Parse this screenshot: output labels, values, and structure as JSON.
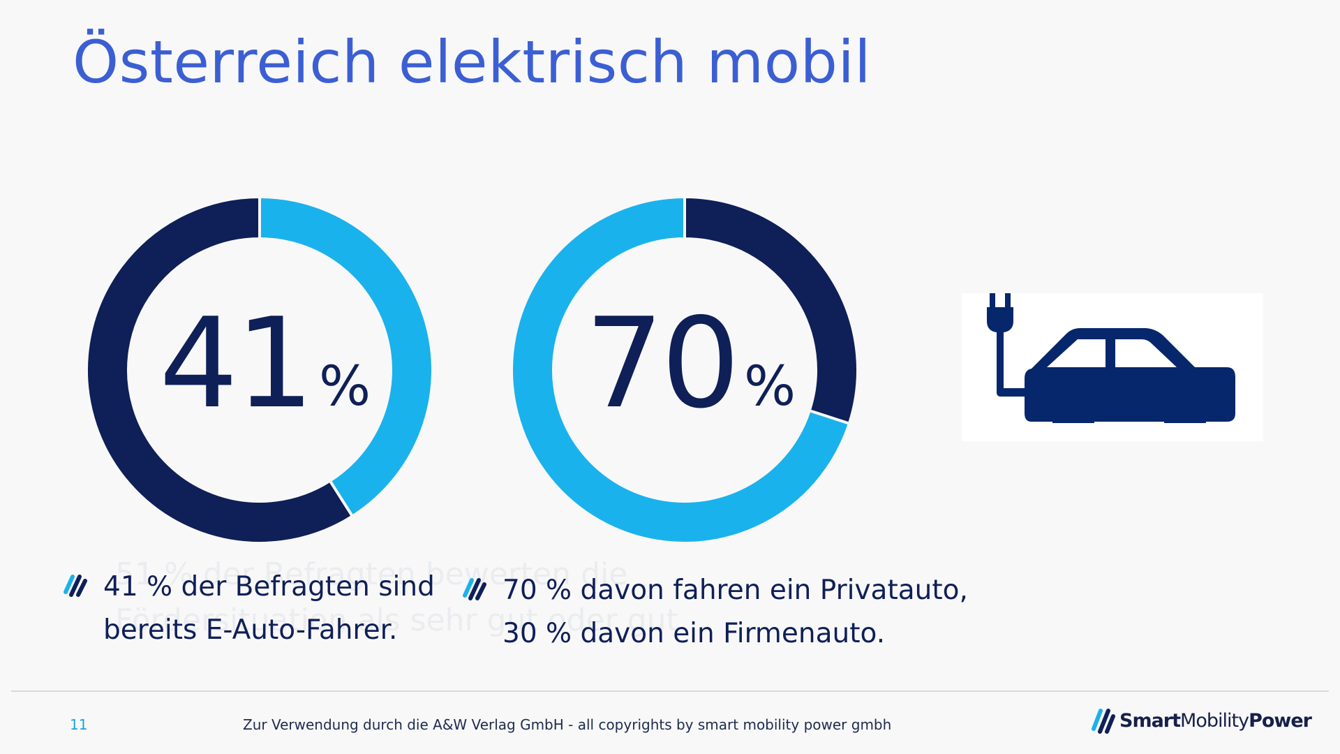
{
  "title": "Österreich elektrisch mobil",
  "chart_data": [
    {
      "type": "pie",
      "label": "41%",
      "big_number": "41",
      "unit": "%",
      "slices": [
        {
          "value": 41,
          "color": "#1ab2ec"
        },
        {
          "value": 59,
          "color": "#0f1f57"
        }
      ]
    },
    {
      "type": "pie",
      "label": "70%",
      "big_number": "70",
      "unit": "%",
      "slices": [
        {
          "value": 30,
          "color": "#0f1f57"
        },
        {
          "value": 70,
          "color": "#1ab2ec"
        }
      ]
    }
  ],
  "icon": "electric-car-plug-icon",
  "bullets": [
    {
      "line1": "41 % der Befragten sind",
      "line2": "bereits E-Auto-Fahrer."
    },
    {
      "line1": "70 % davon fahren ein Privatauto,",
      "line2": "30 % davon ein Firmenauto."
    }
  ],
  "ghost_text": "51 % der Befragten bewerten die\nFördersituation als sehr gut oder gut.",
  "footer": {
    "page_number": "11",
    "note": "Zur Verwendung durch die A&W Verlag GmbH  - all copyrights by smart mobility power gmbh",
    "logo_smart": "Smart",
    "logo_mobility": "Mobility",
    "logo_power": "Power"
  },
  "colors": {
    "dark": "#0f1f57",
    "light": "#1ab2ec",
    "title": "#3b5fd3"
  }
}
